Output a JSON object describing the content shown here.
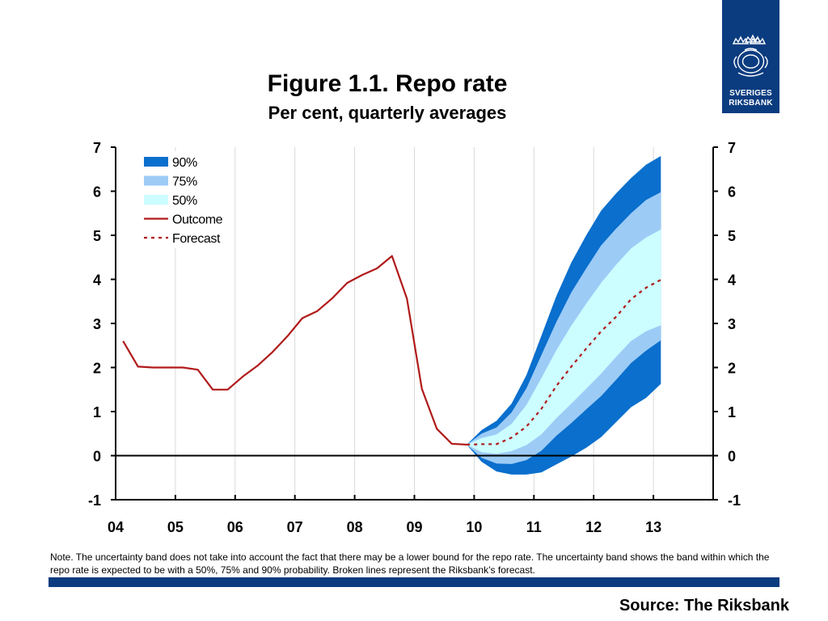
{
  "header": {
    "title": "Figure 1.1. Repo rate",
    "subtitle": "Per cent, quarterly averages"
  },
  "logo": {
    "name": "riksbank-logo",
    "line1": "SVERIGES",
    "line2": "RIKSBANK",
    "color": "#0b3c80"
  },
  "colors": {
    "band90": "#0a6fcd",
    "band75": "#9ccbf6",
    "band50": "#ccfdff",
    "outcome": "#b11a1a",
    "forecast": "#b11a1a"
  },
  "chart_data": {
    "type": "area",
    "title": "Figure 1.1. Repo rate",
    "subtitle": "Per cent, quarterly averages",
    "xlabel": "",
    "ylabel": "",
    "x_ticks": [
      "04",
      "05",
      "06",
      "07",
      "08",
      "09",
      "10",
      "11",
      "12",
      "13"
    ],
    "xlim": [
      2004.0,
      2014.0
    ],
    "y_ticks": [
      7,
      6,
      5,
      4,
      3,
      2,
      1,
      0,
      -1
    ],
    "ylim": [
      -1,
      7
    ],
    "grid": "vertical",
    "legend": {
      "placement": "top-left",
      "entries": [
        "90%",
        "75%",
        "50%",
        "Outcome",
        "Forecast"
      ]
    },
    "series": [
      {
        "name": "Outcome",
        "style": "solid",
        "x": [
          2004.125,
          2004.375,
          2004.625,
          2004.875,
          2005.125,
          2005.375,
          2005.625,
          2005.875,
          2006.125,
          2006.375,
          2006.625,
          2006.875,
          2007.125,
          2007.375,
          2007.625,
          2007.875,
          2008.125,
          2008.375,
          2008.625,
          2008.875,
          2009.125,
          2009.375,
          2009.625,
          2009.875
        ],
        "values": [
          2.6,
          2.02,
          2.0,
          2.0,
          2.0,
          1.95,
          1.5,
          1.5,
          1.79,
          2.04,
          2.35,
          2.71,
          3.12,
          3.28,
          3.57,
          3.92,
          4.1,
          4.25,
          4.53,
          3.56,
          1.52,
          0.61,
          0.27,
          0.25
        ]
      },
      {
        "name": "Forecast",
        "style": "dashed",
        "x": [
          2009.875,
          2010.125,
          2010.375,
          2010.625,
          2010.875,
          2011.125,
          2011.375,
          2011.625,
          2011.875,
          2012.125,
          2012.375,
          2012.625,
          2012.875,
          2013.125
        ],
        "values": [
          0.25,
          0.26,
          0.26,
          0.41,
          0.66,
          1.06,
          1.58,
          2.02,
          2.43,
          2.82,
          3.15,
          3.55,
          3.81,
          3.99
        ]
      }
    ],
    "bands": [
      {
        "name": "90%",
        "x": [
          2009.875,
          2010.125,
          2010.375,
          2010.625,
          2010.875,
          2011.125,
          2011.375,
          2011.625,
          2011.875,
          2012.125,
          2012.375,
          2012.625,
          2012.875,
          2013.125
        ],
        "upper": [
          0.25,
          0.58,
          0.79,
          1.18,
          1.83,
          2.72,
          3.62,
          4.38,
          5.0,
          5.56,
          5.95,
          6.3,
          6.6,
          6.8
        ],
        "lower": [
          0.25,
          -0.14,
          -0.36,
          -0.43,
          -0.43,
          -0.38,
          -0.2,
          -0.02,
          0.18,
          0.42,
          0.76,
          1.1,
          1.31,
          1.63
        ]
      },
      {
        "name": "75%",
        "x": [
          2009.875,
          2010.125,
          2010.375,
          2010.625,
          2010.875,
          2011.125,
          2011.375,
          2011.625,
          2011.875,
          2012.125,
          2012.375,
          2012.625,
          2012.875,
          2013.125
        ],
        "upper": [
          0.25,
          0.5,
          0.64,
          0.98,
          1.53,
          2.28,
          3.03,
          3.7,
          4.25,
          4.77,
          5.15,
          5.5,
          5.8,
          5.98
        ],
        "lower": [
          0.25,
          -0.05,
          -0.18,
          -0.19,
          -0.1,
          0.11,
          0.45,
          0.74,
          1.05,
          1.35,
          1.72,
          2.1,
          2.38,
          2.62
        ]
      },
      {
        "name": "50%",
        "x": [
          2009.875,
          2010.125,
          2010.375,
          2010.625,
          2010.875,
          2011.125,
          2011.375,
          2011.625,
          2011.875,
          2012.125,
          2012.375,
          2012.625,
          2012.875,
          2013.125
        ],
        "upper": [
          0.25,
          0.4,
          0.48,
          0.72,
          1.15,
          1.76,
          2.39,
          2.95,
          3.45,
          3.92,
          4.33,
          4.7,
          4.95,
          5.13
        ],
        "lower": [
          0.25,
          0.08,
          0.04,
          0.1,
          0.24,
          0.48,
          0.85,
          1.18,
          1.52,
          1.86,
          2.24,
          2.6,
          2.82,
          2.96
        ]
      }
    ]
  },
  "footer": {
    "note": "Note. The uncertainty band does not take into account the fact that there may be a lower bound for the repo rate. The uncertainty band shows the band within which the repo rate is expected to be with a 50%, 75% and 90% probability. Broken lines represent the Riksbank’s forecast.",
    "source": "Source: The Riksbank"
  }
}
